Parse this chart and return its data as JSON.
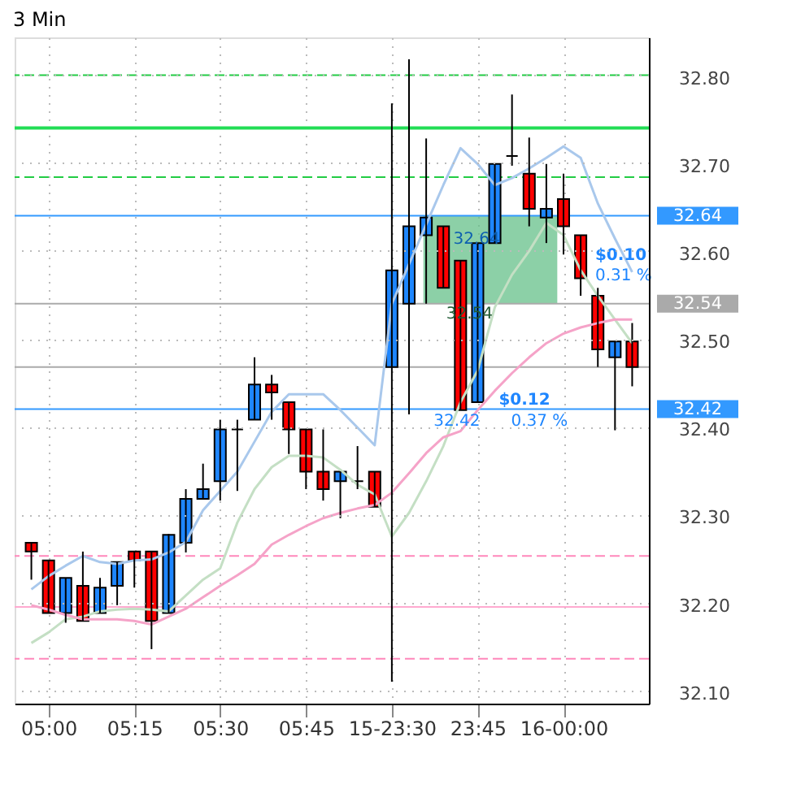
{
  "chart_data": {
    "type": "candlestick",
    "title": "3 Min",
    "categories": [
      null,
      "05:00",
      null,
      null,
      null,
      null,
      "05:15",
      null,
      null,
      null,
      null,
      "05:30",
      null,
      null,
      null,
      null,
      "05:45",
      null,
      null,
      null,
      null,
      "15-23:30",
      null,
      null,
      null,
      null,
      "23:45",
      null,
      null,
      null,
      null,
      "16-00:00",
      null,
      null,
      null,
      null
    ],
    "ohlc": [
      [
        32.268,
        32.268,
        32.226,
        32.258
      ],
      [
        32.248,
        32.248,
        32.188,
        32.188
      ],
      [
        32.188,
        32.228,
        32.177,
        32.228
      ],
      [
        32.219,
        32.258,
        32.179,
        32.179
      ],
      [
        32.188,
        32.228,
        32.188,
        32.217
      ],
      [
        32.219,
        32.246,
        32.197,
        32.246
      ],
      [
        32.258,
        32.258,
        32.217,
        32.248
      ],
      [
        32.258,
        32.258,
        32.147,
        32.179
      ],
      [
        32.188,
        32.278,
        32.188,
        32.277
      ],
      [
        32.268,
        32.329,
        32.257,
        32.318
      ],
      [
        32.318,
        32.358,
        32.318,
        32.329
      ],
      [
        32.338,
        32.408,
        32.316,
        32.397
      ],
      [
        32.397,
        32.408,
        32.327,
        32.397
      ],
      [
        32.408,
        32.479,
        32.408,
        32.448
      ],
      [
        32.448,
        32.459,
        32.408,
        32.439
      ],
      [
        32.428,
        32.428,
        32.369,
        32.397
      ],
      [
        32.397,
        32.397,
        32.329,
        32.349
      ],
      [
        32.349,
        32.397,
        32.316,
        32.329
      ],
      [
        32.338,
        32.349,
        32.296,
        32.349
      ],
      [
        32.338,
        32.378,
        32.329,
        32.338
      ],
      [
        32.349,
        32.349,
        32.309,
        32.309
      ],
      [
        32.468,
        32.768,
        32.11,
        32.578
      ],
      [
        32.54,
        32.818,
        32.414,
        32.628
      ],
      [
        32.618,
        32.728,
        32.54,
        32.638
      ],
      [
        32.628,
        32.628,
        32.558,
        32.558
      ],
      [
        32.589,
        32.589,
        32.419,
        32.419
      ],
      [
        32.428,
        32.609,
        32.428,
        32.609
      ],
      [
        32.609,
        32.699,
        32.609,
        32.699
      ],
      [
        32.708,
        32.778,
        32.697,
        32.708
      ],
      [
        32.688,
        32.729,
        32.628,
        32.648
      ],
      [
        32.638,
        32.699,
        32.609,
        32.648
      ],
      [
        32.659,
        32.688,
        32.596,
        32.628
      ],
      [
        32.618,
        32.618,
        32.549,
        32.569
      ],
      [
        32.549,
        32.558,
        32.468,
        32.488
      ],
      [
        32.479,
        32.497,
        32.396,
        32.497
      ],
      [
        32.497,
        32.518,
        32.446,
        32.468
      ]
    ],
    "series": [
      {
        "type": "line",
        "color": "#a9c8ec",
        "values": [
          32.215,
          32.23,
          32.242,
          32.253,
          32.246,
          32.244,
          32.248,
          32.249,
          32.257,
          32.269,
          32.305,
          32.327,
          32.349,
          32.383,
          32.417,
          32.437,
          32.437,
          32.437,
          32.419,
          32.399,
          32.379,
          32.54,
          32.585,
          32.63,
          32.675,
          32.717,
          32.699,
          32.675,
          32.683,
          32.694,
          32.706,
          32.719,
          32.706,
          32.654,
          32.614,
          32.576
        ]
      },
      {
        "type": "line",
        "color": "#c4dfc4",
        "values": [
          32.154,
          32.166,
          32.181,
          32.184,
          32.19,
          32.192,
          32.193,
          32.192,
          32.19,
          32.208,
          32.226,
          32.239,
          32.291,
          32.329,
          32.354,
          32.367,
          32.367,
          32.365,
          32.351,
          32.334,
          32.323,
          32.275,
          32.302,
          32.338,
          32.378,
          32.428,
          32.464,
          32.536,
          32.573,
          32.6,
          32.632,
          32.618,
          32.578,
          32.549,
          32.522,
          32.495
        ]
      },
      {
        "type": "line",
        "color": "#f5a3c8",
        "values": [
          32.197,
          32.192,
          32.186,
          32.181,
          32.181,
          32.181,
          32.179,
          32.175,
          32.184,
          32.193,
          32.206,
          32.219,
          32.231,
          32.244,
          32.266,
          32.277,
          32.287,
          32.296,
          32.302,
          32.307,
          32.311,
          32.325,
          32.347,
          32.37,
          32.388,
          32.395,
          32.419,
          32.441,
          32.461,
          32.479,
          32.495,
          32.506,
          32.513,
          32.518,
          32.522,
          32.522
        ]
      }
    ],
    "ylim": [
      32.085,
      32.843
    ],
    "yticks": [
      {
        "value": 32.1,
        "label": "32.10"
      },
      {
        "value": 32.2,
        "label": "32.20"
      },
      {
        "value": 32.3,
        "label": "32.30"
      },
      {
        "value": 32.4,
        "label": "32.40"
      },
      {
        "value": 32.5,
        "label": "32.50"
      },
      {
        "value": 32.6,
        "label": "32.60"
      },
      {
        "value": 32.7,
        "label": "32.70"
      },
      {
        "value": 32.8,
        "label": "32.80"
      }
    ],
    "grid": true,
    "ref_lines": [
      {
        "axis": "y",
        "value": 32.8,
        "color": "#22cc44",
        "line_style": "dashed"
      },
      {
        "axis": "y",
        "value": 32.74,
        "color": "#22dd55",
        "line_style": "solid"
      },
      {
        "axis": "y",
        "value": 32.684,
        "color": "#22cc44",
        "line_style": "dashed"
      },
      {
        "axis": "y",
        "value": 32.253,
        "color": "#ff88bb",
        "line_style": "dashed"
      },
      {
        "axis": "y",
        "value": 32.195,
        "color": "#ffaad0",
        "line_style": "solid"
      },
      {
        "axis": "y",
        "value": 32.136,
        "color": "#ff88bb",
        "line_style": "dashed"
      },
      {
        "axis": "y",
        "value": 32.468,
        "color": "#aaaaaa",
        "line_style": "solid"
      },
      {
        "axis": "y",
        "value": 32.54,
        "color": "#aaaaaa",
        "line_style": "solid",
        "label": "32.54"
      },
      {
        "axis": "y",
        "value": 32.64,
        "color": "#3399ff",
        "line_style": "solid",
        "label": "32.64"
      },
      {
        "axis": "y",
        "value": 32.42,
        "color": "#3399ff",
        "line_style": "solid",
        "label": "32.42"
      }
    ],
    "bands": [
      {
        "axis": "y",
        "from": 32.54,
        "to": 32.64,
        "color": "#66c08a"
      }
    ],
    "annotations": [
      "32.64",
      "32.54",
      "$0.10",
      "0.31 %",
      "$0.12",
      "32.42",
      "0.37 %"
    ]
  }
}
